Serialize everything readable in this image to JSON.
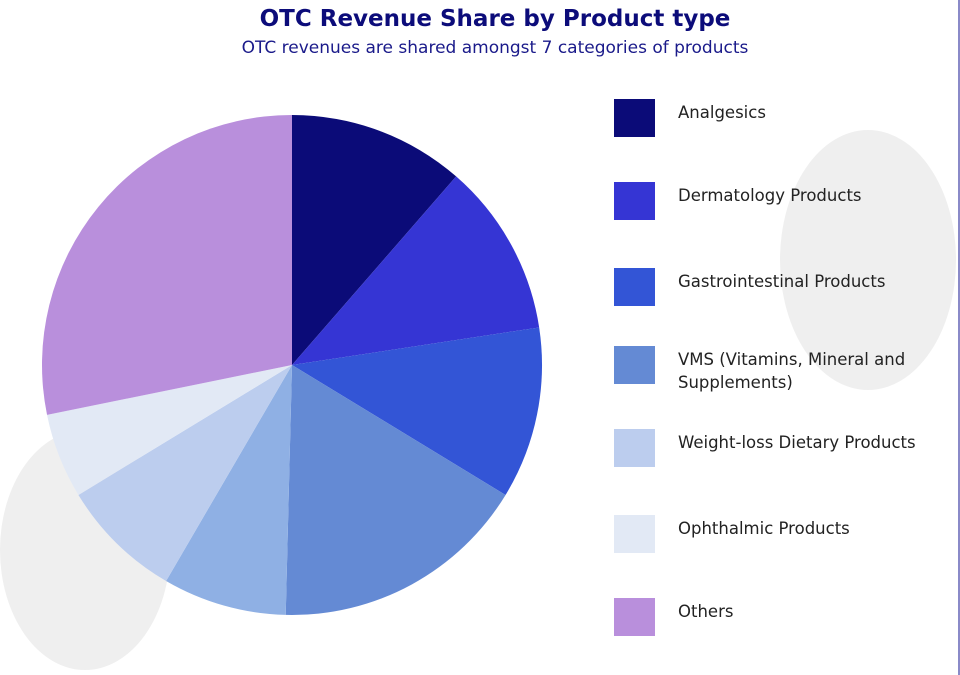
{
  "chart_data": {
    "type": "pie",
    "title": "OTC Revenue Share by Product type",
    "subtitle": "OTC revenues are shared amongst 7 categories of products",
    "legend_position": "right",
    "start_angle": "12 o'clock, clockwise",
    "slices": [
      {
        "name": "Analgesics",
        "value": 11.4,
        "color": "#0b0b78"
      },
      {
        "name": "Dermatology Products",
        "value": 11.2,
        "color": "#3535d4"
      },
      {
        "name": "Gastrointestinal Products",
        "value": 11.1,
        "color": "#3355d6"
      },
      {
        "name": "VMS (Vitamins, Mineral and Supplements)",
        "value": 16.7,
        "color": "#648ad4"
      },
      {
        "name": "",
        "value": 8.0,
        "color": "#8fb0e4"
      },
      {
        "name": "Weight-loss Dietary Products",
        "value": 7.9,
        "color": "#bccdee"
      },
      {
        "name": "Ophthalmic Products",
        "value": 5.5,
        "color": "#e2e9f5"
      },
      {
        "name": "Others",
        "value": 28.2,
        "color": "#b98fdc"
      }
    ]
  }
}
